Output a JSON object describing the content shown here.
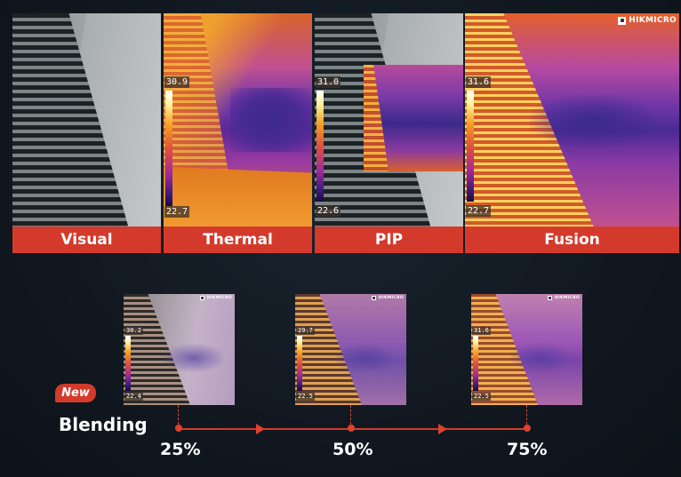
{
  "brand": {
    "logo_text": "HIKMICRO"
  },
  "panels": [
    {
      "label": "Visual"
    },
    {
      "label": "Thermal",
      "scale_max": "30.9",
      "scale_min": "22.7"
    },
    {
      "label": "PIP",
      "scale_max": "31.0",
      "scale_min": "22.6"
    },
    {
      "label": "Fusion",
      "scale_max": "31.6",
      "scale_min": "22.7"
    }
  ],
  "blending": {
    "badge": "New",
    "title": "Blending",
    "steps": [
      {
        "percent": "25%",
        "scale_max": "30.2",
        "scale_min": "22.4"
      },
      {
        "percent": "50%",
        "scale_max": "29.7",
        "scale_min": "22.5"
      },
      {
        "percent": "75%",
        "scale_max": "31.6",
        "scale_min": "22.5"
      }
    ]
  },
  "colors": {
    "accent": "#d43a2c",
    "background": "#111820"
  }
}
